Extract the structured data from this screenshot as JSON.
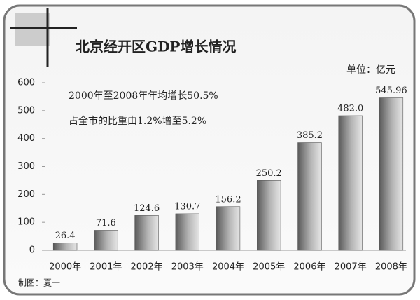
{
  "chart_data": {
    "type": "bar",
    "title": "北京经开区GDP增长情况",
    "unit": "单位：亿元",
    "annotations": [
      "2000年至2008年年均增长50.5%",
      "占全市的比重由1.2%增至5.2%"
    ],
    "credit": "制图：夏一",
    "categories": [
      "2000年",
      "2001年",
      "2002年",
      "2003年",
      "2004年",
      "2005年",
      "2006年",
      "2007年",
      "2008年"
    ],
    "values": [
      26.4,
      71.6,
      124.6,
      130.7,
      156.2,
      250.2,
      385.2,
      482,
      545.96
    ],
    "value_labels": [
      "26.4",
      "71.6",
      "124.6",
      "130.7",
      "156.2",
      "250.2",
      "385.2",
      "482.0",
      "545.96"
    ],
    "ylim": [
      0,
      600
    ],
    "yticks": [
      0,
      100,
      200,
      300,
      400,
      500,
      600
    ],
    "grid": false
  }
}
